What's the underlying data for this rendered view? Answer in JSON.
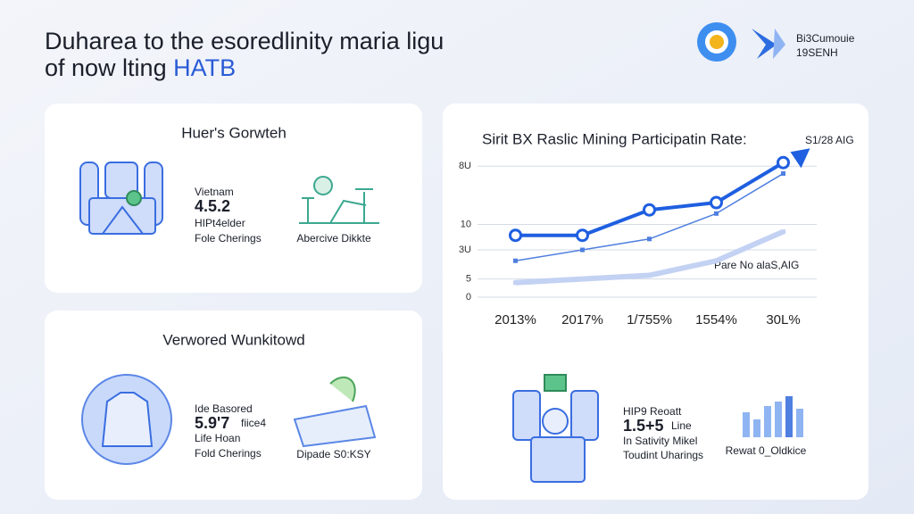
{
  "header": {
    "title_line1": "Duharea to the esoredlinity maria ligu",
    "title_line2": "of now lting",
    "title_highlight": "HATB",
    "logo_text1": "Bi3Cumouie",
    "logo_text2": "19SENH"
  },
  "card1": {
    "title": "Huer's Gorwteh",
    "label": "Vietnam",
    "number": "4.5.2",
    "line1": "HIPt4elder",
    "line2": "Fole Cherings",
    "caption": "Abercive Dikkte"
  },
  "card2": {
    "title": "Verwored Wunkitowd",
    "label": "Ide Basored",
    "number": "5.9'7",
    "number_note": "fiice4",
    "line1": "Life Hoan",
    "line2": "Fold Cherings",
    "caption": "Dipade S0:KSY"
  },
  "panel": {
    "label": "HIP9 Reoatt",
    "number": "1.5+5",
    "number_note": "Line",
    "line1": "In Sativity Mikel",
    "line2": "Toudint Uharings",
    "caption": "Rewat 0_Oldkice"
  },
  "chart_data": {
    "type": "line",
    "title": "Sirit BX Raslic Mining Participatin Rate:",
    "categories": [
      "2013%",
      "2017%",
      "1/755%",
      "1554%",
      "30L%"
    ],
    "series": [
      {
        "color": "#1f5fe0",
        "values": [
          17,
          17,
          24,
          26,
          37
        ]
      },
      {
        "color": "#4f7fe0",
        "values": [
          10,
          13,
          16,
          23,
          34
        ]
      },
      {
        "color": "#c3d2f3",
        "values": [
          4,
          5,
          6,
          10,
          18
        ]
      }
    ],
    "ylim": [
      0,
      40
    ],
    "yticks": [
      {
        "value": 0,
        "label": "0"
      },
      5,
      {
        "value": 13,
        "label": "3U"
      },
      {
        "value": 20,
        "label": "10"
      },
      {
        "value": 36,
        "label": "8U"
      }
    ],
    "grid": true,
    "annotations": [
      "S1/28 AIG",
      "Pare No alaS,AIG"
    ]
  }
}
